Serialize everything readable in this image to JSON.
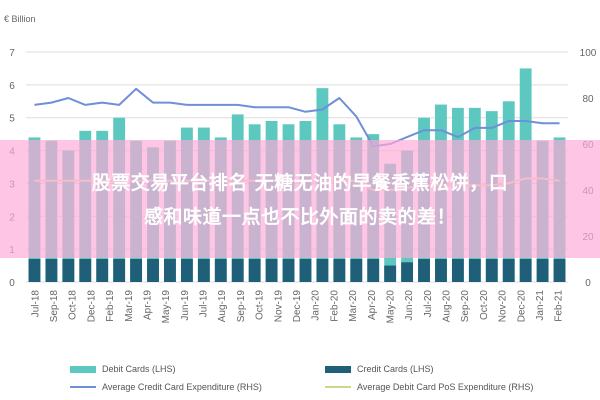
{
  "chart_data": {
    "type": "bar",
    "unit_label": "€ Billion",
    "categories": [
      "Jul-18",
      "Aug-18",
      "Sep-18",
      "Oct-18",
      "Nov-18",
      "Dec-18",
      "Jan-19",
      "Feb-19",
      "Mar-19",
      "Apr-19",
      "May-19",
      "Jun-19",
      "Jul-19",
      "Aug-19",
      "Sep-19",
      "Oct-19",
      "Nov-19",
      "Dec-19",
      "Jan-20",
      "Feb-20",
      "Mar-20",
      "Apr-20",
      "May-20",
      "Jun-20",
      "Jul-20",
      "Aug-20",
      "Sep-20",
      "Oct-20",
      "Nov-20",
      "Dec-20",
      "Jan-21",
      "Feb-21"
    ],
    "x_tick_labels": [
      "Jul-18",
      "Sep-18",
      "Oct-18",
      "Dec-18",
      "Feb-19",
      "Mar-19",
      "Apr-19",
      "May-19",
      "Jun-19",
      "Jul-19",
      "Aug-19",
      "Sep-19",
      "Oct-19",
      "Nov-19",
      "Dec-19",
      "Jan-20",
      "Feb-20",
      "Mar-20",
      "Apr-20",
      "May-20",
      "Jun-20",
      "Jul-20",
      "Aug-20",
      "Sep-20",
      "Oct-20",
      "Nov-20",
      "Dec-20",
      "Jan-21",
      "Feb-21"
    ],
    "left_axis": {
      "ylim": [
        0,
        7
      ],
      "ticks": [
        0,
        1,
        2,
        3,
        4,
        5,
        6,
        7
      ]
    },
    "right_axis": {
      "ylim": [
        0,
        100
      ],
      "ticks": [
        0,
        20,
        40,
        60,
        80,
        100
      ]
    },
    "series": [
      {
        "name": "Debit Cards (LHS)",
        "type": "bar",
        "axis": "left",
        "color": "#5cc8bf",
        "values": [
          4.4,
          4.3,
          4.0,
          4.6,
          4.6,
          5.0,
          4.3,
          4.1,
          4.3,
          4.7,
          4.7,
          4.4,
          5.1,
          4.8,
          4.9,
          4.8,
          4.9,
          5.9,
          4.8,
          4.4,
          4.5,
          3.6,
          4.0,
          5.0,
          5.4,
          5.3,
          5.3,
          5.2,
          5.5,
          6.5,
          4.3,
          4.4
        ]
      },
      {
        "name": "Credit Cards (LHS)",
        "type": "bar",
        "axis": "left",
        "color": "#1f5f78",
        "values": [
          0.7,
          0.7,
          0.7,
          0.7,
          0.7,
          0.7,
          0.7,
          0.7,
          0.7,
          0.7,
          0.7,
          0.7,
          0.7,
          0.7,
          0.7,
          0.7,
          0.7,
          0.7,
          0.7,
          0.7,
          0.7,
          0.5,
          0.6,
          0.7,
          0.7,
          0.7,
          0.7,
          0.7,
          0.7,
          0.7,
          0.7,
          0.7
        ]
      },
      {
        "name": "Average Credit Card Expenditure (RHS)",
        "type": "line",
        "axis": "right",
        "color": "#6f8fd8",
        "values": [
          77,
          78,
          80,
          77,
          78,
          77,
          84,
          78,
          78,
          77,
          77,
          77,
          77,
          76,
          76,
          76,
          74,
          75,
          80,
          72,
          59,
          60,
          63,
          66,
          66,
          63,
          67,
          67,
          70,
          70,
          69,
          69
        ]
      },
      {
        "name": "Average Debit Card PoS Expenditure (RHS)",
        "type": "line",
        "axis": "right",
        "color": "#dde6b0",
        "values": [
          44,
          44,
          44,
          44,
          44,
          44,
          44,
          44,
          44,
          44,
          44,
          44,
          44,
          44,
          44,
          44,
          44,
          44,
          44,
          44,
          40,
          40,
          41,
          42,
          42,
          42,
          42,
          42,
          43,
          45,
          45,
          44
        ]
      }
    ],
    "legend_position": "bottom",
    "grid": true
  },
  "legend": {
    "debit_cards": "Debit Cards (LHS)",
    "credit_cards": "Credit Cards (LHS)",
    "avg_credit": "Average Credit Card Expenditure (RHS)",
    "avg_debit": "Average Debit Card PoS Expenditure (RHS)"
  },
  "overlay": {
    "line1": "股票交易平台排名 无糖无油的早餐香蕉松饼，口",
    "line2": "感和味道一点也不比外面的卖的差！",
    "color": "#ffaad7"
  }
}
